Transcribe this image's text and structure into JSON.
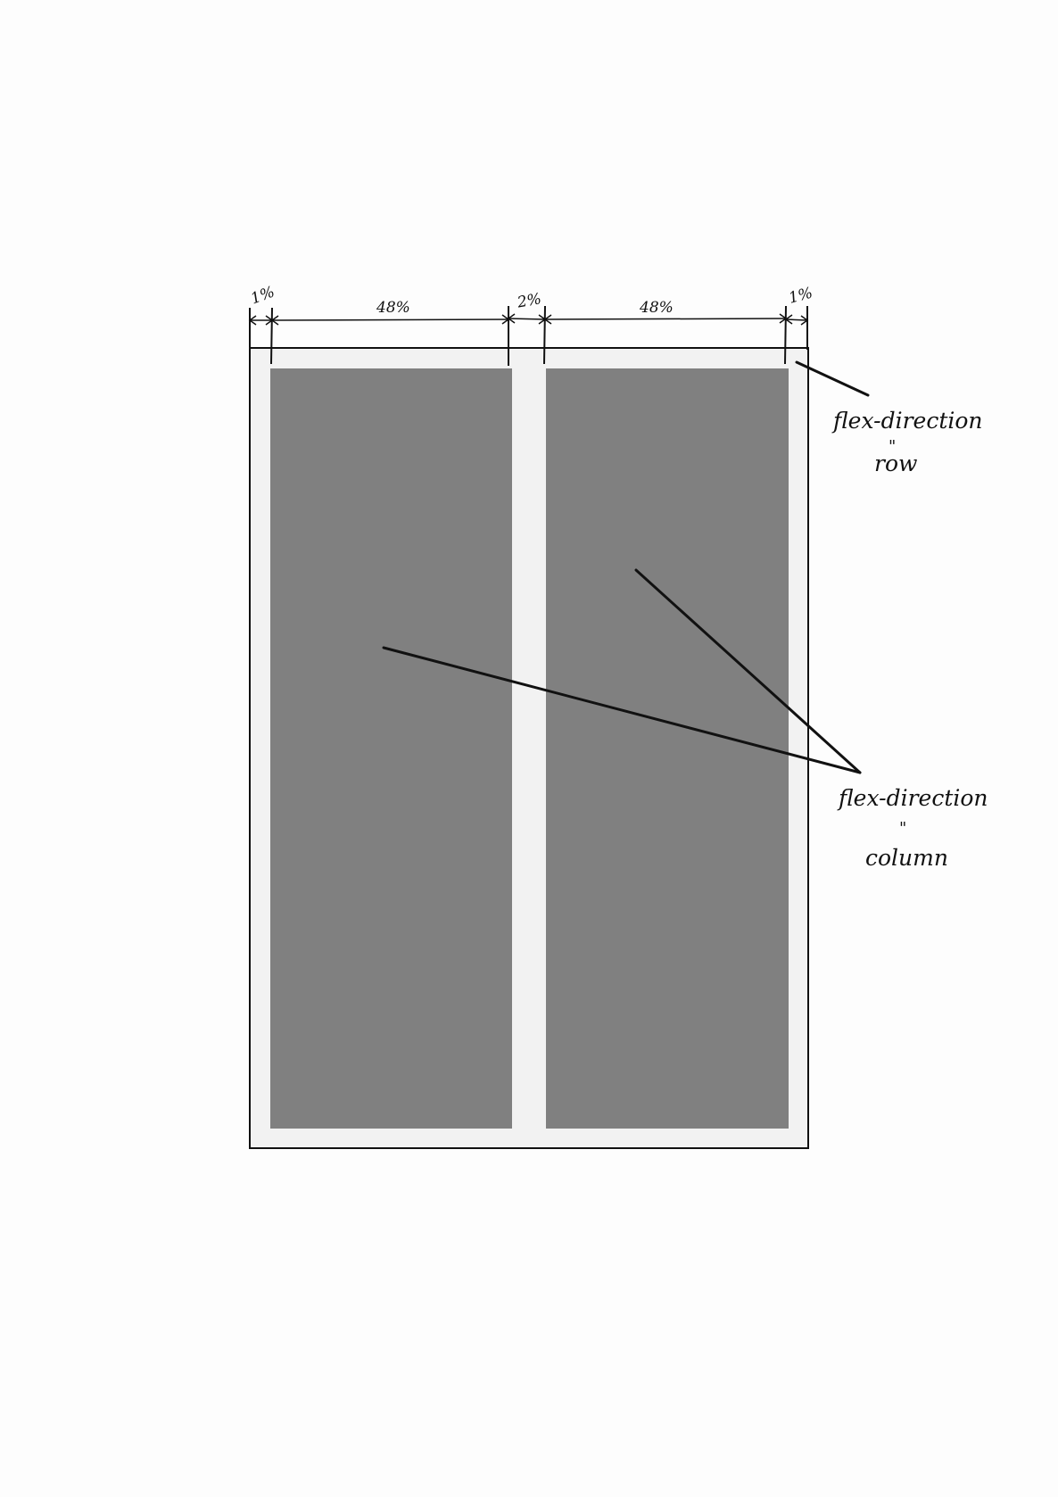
{
  "dimensions": {
    "left_margin": "1%",
    "left_column": "48%",
    "gap": "2%",
    "right_column": "48%",
    "right_margin": "1%"
  },
  "annotations": {
    "container": {
      "property": "flex-direction",
      "ditto": "\"",
      "value": "row"
    },
    "columns": {
      "property": "flex-direction",
      "ditto": "\"",
      "value": "column"
    }
  },
  "colors": {
    "container_fill": "#f2f2f2",
    "column_fill": "#808080",
    "ink": "#111111"
  }
}
